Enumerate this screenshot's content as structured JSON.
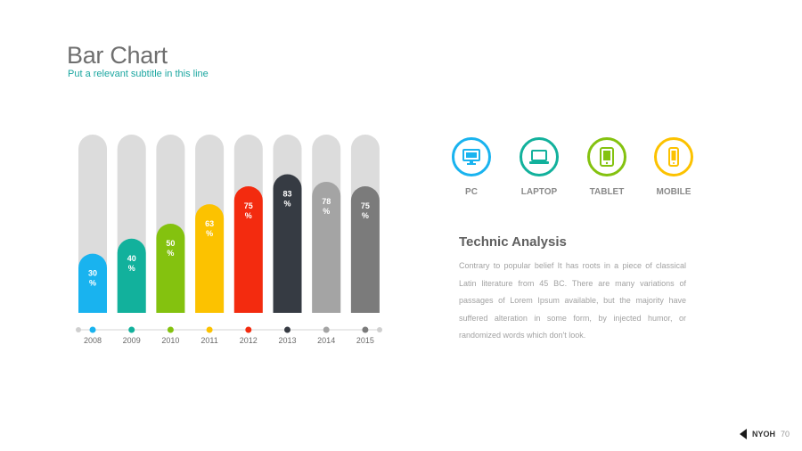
{
  "header": {
    "title": "Bar Chart",
    "subtitle": "Put a relevant subtitle in this line"
  },
  "chart_data": {
    "type": "bar",
    "categories": [
      "2008",
      "2009",
      "2010",
      "2011",
      "2012",
      "2013",
      "2014",
      "2015"
    ],
    "values": [
      30,
      40,
      50,
      63,
      75,
      83,
      78,
      75
    ],
    "data_labels": [
      "30\n%",
      "40\n%",
      "50\n%",
      "63\n%",
      "75\n%",
      "83\n%",
      "78\n%",
      "75\n%"
    ],
    "colors": [
      "#19b3ef",
      "#12b19c",
      "#84c20f",
      "#fcc200",
      "#f32b0f",
      "#363b43",
      "#a4a4a4",
      "#7b7b7b"
    ],
    "track_color": "#dcdcdc",
    "title": "",
    "xlabel": "",
    "ylabel": ""
  },
  "devices": [
    {
      "label": "PC",
      "icon": "monitor-icon",
      "color": "#19b3ef"
    },
    {
      "label": "LAPTOP",
      "icon": "laptop-icon",
      "color": "#12b19c"
    },
    {
      "label": "TABLET",
      "icon": "tablet-icon",
      "color": "#84c20f"
    },
    {
      "label": "MOBILE",
      "icon": "mobile-icon",
      "color": "#fcc200"
    }
  ],
  "analysis": {
    "title": "Technic Analysis",
    "body": "Contrary to popular belief It has roots in a piece of classical Latin literature from 45 BC. There are many variations of passages of Lorem Ipsum available, but the majority have suffered alteration in some form, by injected humor, or randomized words which don't look."
  },
  "footer": {
    "brand": "NYOH",
    "page": "70"
  }
}
